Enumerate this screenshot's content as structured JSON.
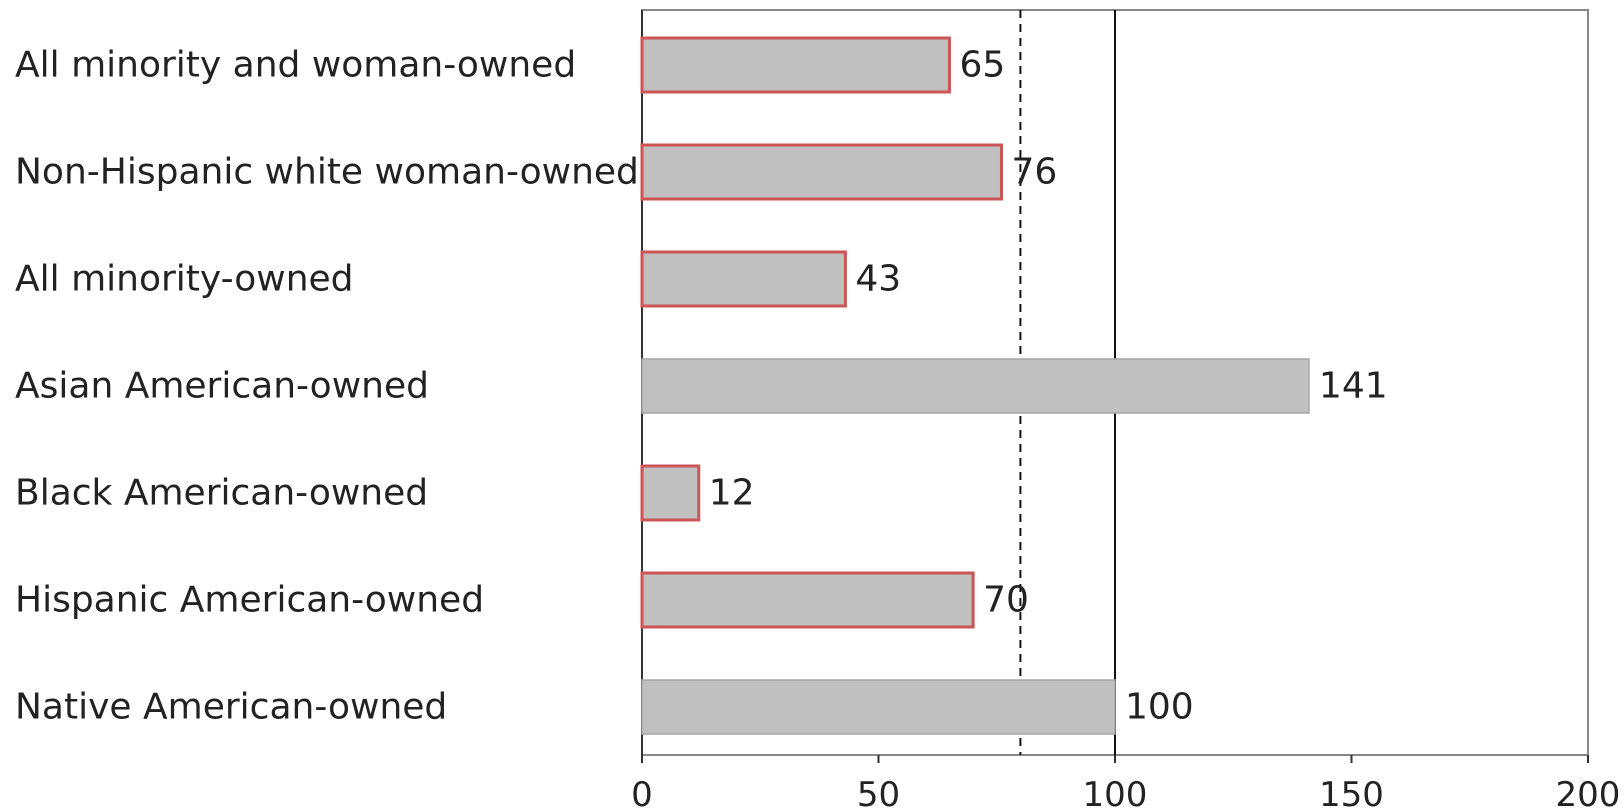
{
  "chart_data": {
    "type": "bar",
    "orientation": "horizontal",
    "categories": [
      "All minority and woman-owned",
      "Non-Hispanic white woman-owned",
      "All minority-owned",
      "Asian American-owned",
      "Black American-owned",
      "Hispanic American-owned",
      "Native American-owned"
    ],
    "values": [
      65,
      76,
      43,
      141,
      12,
      70,
      100
    ],
    "highlighted": [
      true,
      true,
      true,
      false,
      true,
      true,
      false
    ],
    "xlim": [
      0,
      200
    ],
    "xticks": [
      0,
      50,
      100,
      150,
      200
    ],
    "xtick_labels": [
      "0",
      "50",
      "100",
      "150",
      "200"
    ],
    "reference_lines": [
      {
        "value": 100,
        "style": "solid"
      },
      {
        "value": 80,
        "style": "dashed"
      }
    ],
    "title": "",
    "xlabel": "",
    "ylabel": "",
    "grid": false,
    "legend": "none",
    "colors": {
      "bar_fill": "#c0c0c0",
      "highlight_outline": "#cc5555",
      "plain_outline": "#a6a6a6",
      "axis": "#333333",
      "reference_line": "#111111"
    }
  }
}
